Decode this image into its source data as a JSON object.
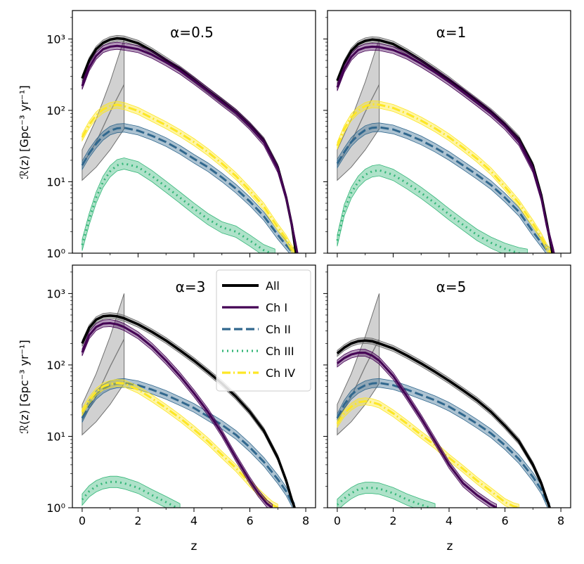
{
  "figure": {
    "ylabel_html": "ℛ(z) [Gpc⁻³ yr⁻¹]",
    "xlabel": "z"
  },
  "legend": [
    {
      "name": "All",
      "color": "#000000",
      "dash": "solid"
    },
    {
      "name": "Ch I",
      "color": "#440154",
      "dash": "solid"
    },
    {
      "name": "Ch II",
      "color": "#31688e",
      "dash": "dashed"
    },
    {
      "name": "Ch III",
      "color": "#35b779",
      "dash": "dotted"
    },
    {
      "name": "Ch IV",
      "color": "#fde725",
      "dash": "dashdot"
    }
  ],
  "chart_data": [
    {
      "type": "line",
      "panel": "top-left",
      "title": "α=0.5",
      "xlabel": "",
      "ylabel": "ℛ(z) [Gpc⁻³ yr⁻¹]",
      "xlim": [
        -0.35,
        8.35
      ],
      "ylim": [
        1,
        2500
      ],
      "yscale": "log",
      "xticks": [
        0,
        2,
        4,
        6,
        8
      ],
      "yticks": [
        "10⁰",
        "10¹",
        "10²",
        "10³"
      ],
      "series": [
        {
          "name": "All",
          "x": [
            0,
            0.25,
            0.5,
            0.75,
            1,
            1.25,
            1.5,
            2,
            2.5,
            3,
            3.5,
            4,
            4.5,
            5,
            5.5,
            6,
            6.5,
            7,
            7.3,
            7.5,
            7.65
          ],
          "y": [
            280,
            500,
            720,
            880,
            980,
            1020,
            1000,
            870,
            680,
            510,
            380,
            270,
            190,
            135,
            95,
            62,
            38,
            16,
            6,
            2.5,
            1
          ]
        },
        {
          "name": "Ch I",
          "x": [
            0,
            0.25,
            0.5,
            0.75,
            1,
            1.25,
            1.5,
            2,
            2.5,
            3,
            3.5,
            4,
            4.5,
            5,
            5.5,
            6,
            6.5,
            7,
            7.3,
            7.5,
            7.7
          ],
          "y": [
            220,
            400,
            580,
            720,
            780,
            800,
            780,
            720,
            600,
            470,
            360,
            260,
            185,
            130,
            92,
            60,
            36,
            15,
            6,
            2.5,
            1
          ]
        },
        {
          "name": "Ch II",
          "x": [
            0,
            0.25,
            0.5,
            0.75,
            1,
            1.25,
            1.5,
            2,
            2.5,
            3,
            3.5,
            4,
            4.5,
            5,
            5.5,
            6,
            6.5,
            7,
            7.3,
            7.5,
            7.65
          ],
          "y": [
            17,
            25,
            34,
            44,
            52,
            56,
            57,
            52,
            44,
            36,
            28,
            21,
            16,
            11.5,
            8,
            5.3,
            3.3,
            1.8,
            1.3,
            1.05,
            1
          ]
        },
        {
          "name": "Ch III",
          "x": [
            0,
            0.25,
            0.5,
            0.75,
            1,
            1.25,
            1.5,
            2,
            2.5,
            3,
            3.5,
            4,
            4.5,
            5,
            5.5,
            6,
            6.5,
            6.9
          ],
          "y": [
            1.3,
            3,
            6,
            10,
            14,
            17,
            18,
            16,
            12,
            8.5,
            6,
            4.2,
            3,
            2.3,
            2,
            1.5,
            1.1,
            0.95
          ]
        },
        {
          "name": "Ch IV",
          "x": [
            0,
            0.25,
            0.5,
            0.75,
            1,
            1.25,
            1.5,
            2,
            2.5,
            3,
            3.5,
            4,
            4.5,
            5,
            5.5,
            6,
            6.5,
            7,
            7.3,
            7.5,
            7.65
          ],
          "y": [
            42,
            63,
            85,
            103,
            115,
            120,
            115,
            98,
            78,
            62,
            48,
            36,
            26,
            18,
            12,
            7.5,
            4.5,
            2.3,
            1.6,
            1.15,
            1
          ]
        }
      ]
    },
    {
      "type": "line",
      "panel": "top-right",
      "title": "α=1",
      "xlim": [
        -0.35,
        8.35
      ],
      "ylim": [
        1,
        2500
      ],
      "yscale": "log",
      "xticks": [
        0,
        2,
        4,
        6,
        8
      ],
      "series": [
        {
          "name": "All",
          "x": [
            0,
            0.25,
            0.5,
            0.75,
            1,
            1.25,
            1.5,
            2,
            2.5,
            3,
            3.5,
            4,
            4.5,
            5,
            5.5,
            6,
            6.5,
            7,
            7.3,
            7.5,
            7.7
          ],
          "y": [
            260,
            460,
            680,
            850,
            940,
            980,
            960,
            850,
            660,
            500,
            370,
            270,
            190,
            135,
            96,
            64,
            40,
            17,
            6.5,
            2.6,
            1
          ]
        },
        {
          "name": "Ch I",
          "x": [
            0,
            0.25,
            0.5,
            0.75,
            1,
            1.25,
            1.5,
            2,
            2.5,
            3,
            3.5,
            4,
            4.5,
            5,
            5.5,
            6,
            6.5,
            7,
            7.3,
            7.5,
            7.75
          ],
          "y": [
            210,
            380,
            560,
            700,
            760,
            780,
            770,
            700,
            580,
            450,
            340,
            250,
            180,
            128,
            90,
            60,
            36,
            15,
            6,
            2.4,
            1
          ]
        },
        {
          "name": "Ch II",
          "x": [
            0,
            0.25,
            0.5,
            0.75,
            1,
            1.25,
            1.5,
            2,
            2.5,
            3,
            3.5,
            4,
            4.5,
            5,
            5.5,
            6,
            6.5,
            7,
            7.3,
            7.5,
            7.7
          ],
          "y": [
            18,
            26,
            36,
            45,
            53,
            57,
            58,
            54,
            46,
            38,
            30,
            23,
            17,
            12.5,
            9,
            6,
            3.8,
            2,
            1.4,
            1.1,
            1
          ]
        },
        {
          "name": "Ch III",
          "x": [
            0,
            0.25,
            0.5,
            0.75,
            1,
            1.25,
            1.5,
            2,
            2.5,
            3,
            3.5,
            4,
            4.5,
            5,
            5.5,
            6,
            6.5,
            6.8
          ],
          "y": [
            1.5,
            4,
            7,
            10,
            12.5,
            14,
            14.5,
            12.5,
            9.5,
            7,
            5,
            3.5,
            2.5,
            1.8,
            1.4,
            1.15,
            1,
            0.95
          ]
        },
        {
          "name": "Ch IV",
          "x": [
            0,
            0.25,
            0.5,
            0.75,
            1,
            1.25,
            1.5,
            2,
            2.5,
            3,
            3.5,
            4,
            4.5,
            5,
            5.5,
            6,
            6.5,
            7,
            7.3,
            7.5,
            7.65
          ],
          "y": [
            32,
            55,
            80,
            100,
            115,
            122,
            120,
            108,
            90,
            72,
            56,
            42,
            30,
            21,
            14,
            8.5,
            5,
            2.6,
            1.7,
            1.2,
            1
          ]
        }
      ]
    },
    {
      "type": "line",
      "panel": "bottom-left",
      "title": "α=3",
      "xlabel": "z",
      "ylabel": "ℛ(z) [Gpc⁻³ yr⁻¹]",
      "xlim": [
        -0.35,
        8.35
      ],
      "ylim": [
        1,
        2500
      ],
      "yscale": "log",
      "xticks": [
        0,
        2,
        4,
        6,
        8
      ],
      "series": [
        {
          "name": "All",
          "x": [
            0,
            0.25,
            0.5,
            0.75,
            1,
            1.25,
            1.5,
            2,
            2.5,
            3,
            3.5,
            4,
            4.5,
            5,
            5.5,
            6,
            6.5,
            7,
            7.3,
            7.5,
            7.6
          ],
          "y": [
            200,
            330,
            430,
            480,
            490,
            480,
            450,
            370,
            290,
            220,
            160,
            115,
            80,
            55,
            36,
            22,
            12,
            5,
            2.4,
            1.3,
            1
          ]
        },
        {
          "name": "Ch I",
          "x": [
            0,
            0.25,
            0.5,
            0.75,
            1,
            1.25,
            1.5,
            2,
            2.5,
            3,
            3.5,
            4,
            4.5,
            5,
            5.5,
            6,
            6.3,
            6.6,
            6.8
          ],
          "y": [
            150,
            260,
            340,
            380,
            385,
            370,
            340,
            260,
            180,
            115,
            70,
            40,
            22,
            11,
            5,
            2.4,
            1.6,
            1.15,
            1
          ]
        },
        {
          "name": "Ch II",
          "x": [
            0,
            0.25,
            0.5,
            0.75,
            1,
            1.25,
            1.5,
            2,
            2.5,
            3,
            3.5,
            4,
            4.5,
            5,
            5.5,
            6,
            6.5,
            7,
            7.3,
            7.5,
            7.6
          ],
          "y": [
            18,
            28,
            38,
            46,
            52,
            55,
            56,
            52,
            45,
            38,
            31,
            25,
            19,
            14.5,
            10.5,
            7,
            4.4,
            2.5,
            1.7,
            1.2,
            1
          ]
        },
        {
          "name": "Ch III",
          "x": [
            0,
            0.25,
            0.5,
            0.75,
            1,
            1.25,
            1.5,
            2,
            2.5,
            3,
            3.5
          ],
          "y": [
            1.3,
            1.7,
            2.0,
            2.2,
            2.3,
            2.3,
            2.2,
            1.9,
            1.5,
            1.2,
            0.95
          ]
        },
        {
          "name": "Ch IV",
          "x": [
            0,
            0.25,
            0.5,
            0.75,
            1,
            1.25,
            1.5,
            2,
            2.5,
            3,
            3.5,
            4,
            4.5,
            5,
            5.5,
            6,
            6.5,
            6.8,
            7.0
          ],
          "y": [
            22,
            32,
            42,
            50,
            54,
            56,
            55,
            45,
            34,
            25,
            18,
            12.5,
            8.5,
            5.5,
            3.6,
            2.2,
            1.4,
            1.1,
            1
          ]
        }
      ]
    },
    {
      "type": "line",
      "panel": "bottom-right",
      "title": "α=5",
      "xlabel": "z",
      "xlim": [
        -0.35,
        8.35
      ],
      "ylim": [
        1,
        2500
      ],
      "yscale": "log",
      "xticks": [
        0,
        2,
        4,
        6,
        8
      ],
      "series": [
        {
          "name": "All",
          "x": [
            0,
            0.25,
            0.5,
            0.75,
            1,
            1.25,
            1.5,
            2,
            2.5,
            3,
            3.5,
            4,
            4.5,
            5,
            5.5,
            6,
            6.5,
            7,
            7.3,
            7.5,
            7.6
          ],
          "y": [
            145,
            175,
            200,
            215,
            220,
            215,
            200,
            170,
            135,
            105,
            80,
            60,
            44,
            32,
            22,
            14,
            8.5,
            4,
            2.2,
            1.3,
            1
          ]
        },
        {
          "name": "Ch I",
          "x": [
            0,
            0.25,
            0.5,
            0.75,
            1,
            1.25,
            1.5,
            2,
            2.5,
            3,
            3.5,
            4,
            4.5,
            5,
            5.5,
            5.7
          ],
          "y": [
            105,
            125,
            140,
            148,
            148,
            135,
            115,
            70,
            36,
            18,
            8.5,
            4,
            2.2,
            1.5,
            1.1,
            1
          ]
        },
        {
          "name": "Ch II",
          "x": [
            0,
            0.25,
            0.5,
            0.75,
            1,
            1.25,
            1.5,
            2,
            2.5,
            3,
            3.5,
            4,
            4.5,
            5,
            5.5,
            6,
            6.5,
            7,
            7.3,
            7.5,
            7.6
          ],
          "y": [
            18,
            28,
            38,
            46,
            52,
            55,
            56,
            52,
            45,
            38,
            32,
            26,
            20,
            15,
            11,
            7.5,
            4.8,
            2.7,
            1.8,
            1.2,
            1
          ]
        },
        {
          "name": "Ch III",
          "x": [
            0,
            0.25,
            0.5,
            0.75,
            1,
            1.25,
            1.5,
            2,
            2.5,
            3,
            3.5
          ],
          "y": [
            1.1,
            1.35,
            1.6,
            1.8,
            1.9,
            1.9,
            1.85,
            1.6,
            1.3,
            1.1,
            0.95
          ]
        },
        {
          "name": "Ch IV",
          "x": [
            0,
            0.25,
            0.5,
            0.75,
            1,
            1.25,
            1.5,
            2,
            2.5,
            3,
            3.5,
            4,
            4.5,
            5,
            5.5,
            6,
            6.3,
            6.5
          ],
          "y": [
            15,
            21,
            26,
            30,
            31,
            30,
            28,
            21,
            15,
            10.5,
            7.5,
            5,
            3.5,
            2.4,
            1.7,
            1.2,
            1.05,
            1
          ]
        }
      ]
    }
  ]
}
